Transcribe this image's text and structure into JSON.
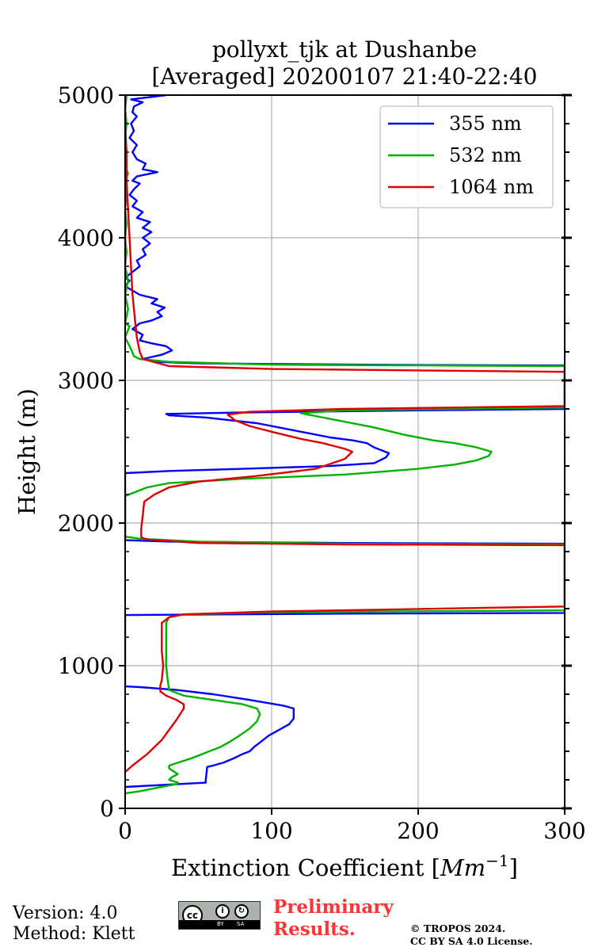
{
  "chart_data": {
    "type": "line",
    "title_line1": "pollyxt_tjk at Dushanbe",
    "title_line2": "[Averaged] 20200107 21:40-22:40",
    "xlabel": "Extinction Coefficient [Mm^-1]",
    "ylabel": "Height (m)",
    "xlim": [
      0,
      300
    ],
    "ylim": [
      0,
      5000
    ],
    "x_ticks": [
      0,
      100,
      200,
      300
    ],
    "y_ticks": [
      0,
      1000,
      2000,
      3000,
      4000,
      5000
    ],
    "grid": true,
    "legend_position": "top-right",
    "series": [
      {
        "name": "355 nm",
        "color": "#0000ff",
        "points": [
          [
            0,
            150
          ],
          [
            55,
            180
          ],
          [
            55,
            200
          ],
          [
            56,
            290
          ],
          [
            60,
            300
          ],
          [
            67,
            320
          ],
          [
            74,
            350
          ],
          [
            80,
            380
          ],
          [
            85,
            400
          ],
          [
            88,
            430
          ],
          [
            93,
            470
          ],
          [
            98,
            510
          ],
          [
            105,
            550
          ],
          [
            112,
            590
          ],
          [
            115,
            630
          ],
          [
            115,
            700
          ],
          [
            108,
            720
          ],
          [
            85,
            760
          ],
          [
            60,
            800
          ],
          [
            35,
            830
          ],
          [
            10,
            850
          ],
          [
            0,
            855
          ],
          [
            0,
            1355
          ],
          [
            40,
            1358
          ],
          [
            150,
            1365
          ],
          [
            300,
            1370
          ],
          [
            300,
            1855
          ],
          [
            150,
            1860
          ],
          [
            30,
            1870
          ],
          [
            0,
            1880
          ],
          [
            0,
            2350
          ],
          [
            30,
            2365
          ],
          [
            80,
            2380
          ],
          [
            140,
            2400
          ],
          [
            170,
            2420
          ],
          [
            178,
            2460
          ],
          [
            180,
            2490
          ],
          [
            175,
            2510
          ],
          [
            170,
            2530
          ],
          [
            165,
            2560
          ],
          [
            155,
            2580
          ],
          [
            140,
            2600
          ],
          [
            125,
            2630
          ],
          [
            110,
            2660
          ],
          [
            90,
            2700
          ],
          [
            55,
            2740
          ],
          [
            30,
            2755
          ],
          [
            28,
            2765
          ],
          [
            80,
            2775
          ],
          [
            200,
            2790
          ],
          [
            300,
            2800
          ],
          [
            300,
            3105
          ],
          [
            200,
            3108
          ],
          [
            100,
            3115
          ],
          [
            50,
            3120
          ],
          [
            20,
            3130
          ],
          [
            12,
            3150
          ],
          [
            25,
            3180
          ],
          [
            32,
            3210
          ],
          [
            28,
            3240
          ],
          [
            18,
            3260
          ],
          [
            10,
            3280
          ],
          [
            12,
            3320
          ],
          [
            5,
            3360
          ],
          [
            10,
            3400
          ],
          [
            18,
            3420
          ],
          [
            25,
            3450
          ],
          [
            22,
            3480
          ],
          [
            27,
            3510
          ],
          [
            18,
            3540
          ],
          [
            22,
            3570
          ],
          [
            10,
            3600
          ],
          [
            5,
            3630
          ],
          [
            0,
            3660
          ],
          [
            3,
            3700
          ],
          [
            0,
            3720
          ],
          [
            5,
            3760
          ],
          [
            10,
            3800
          ],
          [
            8,
            3840
          ],
          [
            14,
            3880
          ],
          [
            12,
            3920
          ],
          [
            17,
            3960
          ],
          [
            12,
            4000
          ],
          [
            18,
            4040
          ],
          [
            12,
            4070
          ],
          [
            17,
            4110
          ],
          [
            8,
            4140
          ],
          [
            12,
            4180
          ],
          [
            5,
            4220
          ],
          [
            8,
            4260
          ],
          [
            3,
            4300
          ],
          [
            6,
            4340
          ],
          [
            10,
            4380
          ],
          [
            5,
            4400
          ],
          [
            8,
            4430
          ],
          [
            22,
            4460
          ],
          [
            12,
            4480
          ],
          [
            14,
            4520
          ],
          [
            8,
            4550
          ],
          [
            5,
            4600
          ],
          [
            8,
            4650
          ],
          [
            3,
            4700
          ],
          [
            6,
            4750
          ],
          [
            4,
            4800
          ],
          [
            8,
            4850
          ],
          [
            5,
            4880
          ],
          [
            6,
            4920
          ],
          [
            12,
            4950
          ],
          [
            4,
            4970
          ],
          [
            28,
            5000
          ]
        ]
      },
      {
        "name": "532 nm",
        "color": "#00b300",
        "points": [
          [
            0,
            105
          ],
          [
            10,
            120
          ],
          [
            22,
            145
          ],
          [
            35,
            170
          ],
          [
            36,
            180
          ],
          [
            30,
            200
          ],
          [
            32,
            220
          ],
          [
            36,
            240
          ],
          [
            30,
            280
          ],
          [
            30,
            300
          ],
          [
            36,
            320
          ],
          [
            45,
            350
          ],
          [
            55,
            390
          ],
          [
            65,
            430
          ],
          [
            72,
            470
          ],
          [
            78,
            510
          ],
          [
            85,
            560
          ],
          [
            90,
            610
          ],
          [
            92,
            660
          ],
          [
            90,
            700
          ],
          [
            80,
            730
          ],
          [
            60,
            760
          ],
          [
            40,
            790
          ],
          [
            30,
            830
          ],
          [
            29,
            900
          ],
          [
            28,
            1000
          ],
          [
            28,
            1100
          ],
          [
            28,
            1200
          ],
          [
            28,
            1300
          ],
          [
            30,
            1340
          ],
          [
            40,
            1360
          ],
          [
            100,
            1375
          ],
          [
            300,
            1388
          ],
          [
            300,
            1850
          ],
          [
            150,
            1855
          ],
          [
            50,
            1870
          ],
          [
            10,
            1890
          ],
          [
            0,
            1905
          ],
          [
            0,
            2190
          ],
          [
            5,
            2210
          ],
          [
            15,
            2250
          ],
          [
            30,
            2280
          ],
          [
            80,
            2310
          ],
          [
            150,
            2340
          ],
          [
            200,
            2380
          ],
          [
            225,
            2410
          ],
          [
            240,
            2440
          ],
          [
            248,
            2470
          ],
          [
            250,
            2500
          ],
          [
            240,
            2530
          ],
          [
            225,
            2560
          ],
          [
            210,
            2580
          ],
          [
            190,
            2620
          ],
          [
            170,
            2670
          ],
          [
            150,
            2710
          ],
          [
            130,
            2750
          ],
          [
            120,
            2770
          ],
          [
            150,
            2790
          ],
          [
            300,
            2810
          ],
          [
            300,
            3100
          ],
          [
            200,
            3105
          ],
          [
            100,
            3110
          ],
          [
            30,
            3130
          ],
          [
            10,
            3150
          ],
          [
            6,
            3170
          ],
          [
            4,
            3220
          ],
          [
            2,
            3260
          ],
          [
            0,
            3300
          ],
          [
            3,
            3380
          ],
          [
            0,
            3400
          ],
          [
            2,
            3500
          ],
          [
            0,
            3600
          ],
          [
            2,
            3700
          ],
          [
            0,
            3800
          ],
          [
            1,
            3900
          ],
          [
            0,
            4000
          ],
          [
            1,
            4100
          ],
          [
            0,
            4200
          ],
          [
            1,
            4300
          ],
          [
            0,
            4400
          ],
          [
            2,
            4450
          ],
          [
            0,
            4500
          ],
          [
            1,
            4600
          ],
          [
            0,
            4700
          ],
          [
            1,
            4800
          ],
          [
            0,
            4900
          ],
          [
            1,
            5000
          ]
        ]
      },
      {
        "name": "1064 nm",
        "color": "#dd0000",
        "points": [
          [
            0,
            255
          ],
          [
            5,
            300
          ],
          [
            10,
            340
          ],
          [
            15,
            380
          ],
          [
            20,
            430
          ],
          [
            25,
            480
          ],
          [
            30,
            550
          ],
          [
            35,
            620
          ],
          [
            40,
            700
          ],
          [
            40,
            730
          ],
          [
            35,
            760
          ],
          [
            28,
            790
          ],
          [
            24,
            820
          ],
          [
            24,
            860
          ],
          [
            25,
            900
          ],
          [
            26,
            1000
          ],
          [
            25,
            1100
          ],
          [
            25,
            1200
          ],
          [
            25,
            1300
          ],
          [
            30,
            1340
          ],
          [
            40,
            1360
          ],
          [
            100,
            1380
          ],
          [
            300,
            1415
          ],
          [
            300,
            1845
          ],
          [
            150,
            1850
          ],
          [
            50,
            1860
          ],
          [
            15,
            1885
          ],
          [
            11,
            1900
          ],
          [
            11,
            1960
          ],
          [
            12,
            2050
          ],
          [
            13,
            2150
          ],
          [
            20,
            2200
          ],
          [
            30,
            2250
          ],
          [
            50,
            2290
          ],
          [
            90,
            2330
          ],
          [
            130,
            2380
          ],
          [
            150,
            2450
          ],
          [
            155,
            2500
          ],
          [
            150,
            2520
          ],
          [
            135,
            2560
          ],
          [
            120,
            2590
          ],
          [
            100,
            2640
          ],
          [
            85,
            2680
          ],
          [
            75,
            2720
          ],
          [
            70,
            2760
          ],
          [
            85,
            2780
          ],
          [
            150,
            2800
          ],
          [
            300,
            2820
          ],
          [
            300,
            3060
          ],
          [
            200,
            3070
          ],
          [
            100,
            3080
          ],
          [
            30,
            3100
          ],
          [
            12,
            3150
          ],
          [
            10,
            3200
          ],
          [
            8,
            3300
          ],
          [
            7,
            3400
          ],
          [
            5,
            3600
          ],
          [
            4,
            3800
          ],
          [
            3,
            4000
          ],
          [
            2,
            4200
          ],
          [
            1,
            4400
          ],
          [
            1,
            4600
          ],
          [
            0,
            4800
          ],
          [
            0,
            5000
          ]
        ]
      }
    ]
  },
  "footer": {
    "version": "Version: 4.0",
    "method": "Method: Klett",
    "license_badge": {
      "cc": "cc",
      "by": "BY",
      "sa": "SA"
    },
    "preliminary_line1": "Preliminary",
    "preliminary_line2": "Results.",
    "copyright_line1": "© TROPOS 2024.",
    "copyright_line2": "CC BY SA 4.0 License."
  }
}
